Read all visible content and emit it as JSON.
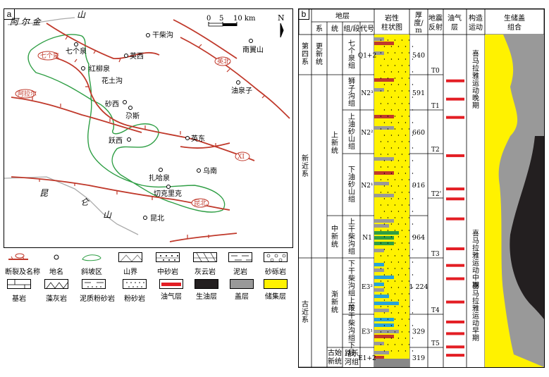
{
  "panel_a": {
    "label": "a",
    "scale": {
      "t0": "0",
      "t1": "5",
      "t2": "10 km"
    },
    "north": "N",
    "big_labels": [
      {
        "text": "阿  尔  金",
        "name": "region-aerjin"
      },
      {
        "text": "山",
        "name": "region-shan-top"
      },
      {
        "text": "昆",
        "name": "region-kun"
      },
      {
        "text": "仑",
        "name": "region-lun"
      },
      {
        "text": "山",
        "name": "region-shan-bottom"
      }
    ],
    "places": [
      {
        "name": "qianchaigou",
        "text": "干柴沟"
      },
      {
        "name": "nanyishan",
        "text": "南翼山"
      },
      {
        "name": "qigequan",
        "text": "七个泉"
      },
      {
        "name": "yingxi",
        "text": "英西"
      },
      {
        "name": "hongliuquan",
        "text": "红柳泉"
      },
      {
        "name": "huatugou",
        "text": "花土沟"
      },
      {
        "name": "youquanzi",
        "text": "油泉子"
      },
      {
        "name": "shaxi",
        "text": "砂西"
      },
      {
        "name": "ersi",
        "text": "尕斯"
      },
      {
        "name": "yingdong",
        "text": "英东"
      },
      {
        "name": "yuexi",
        "text": "跃西"
      },
      {
        "name": "zhahaquan",
        "text": "扎哈泉"
      },
      {
        "name": "wunan",
        "text": "乌南"
      },
      {
        "name": "qiekelike",
        "text": "切克里克"
      },
      {
        "name": "kunbei-place",
        "text": "昆北"
      }
    ],
    "faults": [
      {
        "name": "fault-qigequan",
        "text": "七个泉"
      },
      {
        "name": "fault-yingbei",
        "text": "英北"
      },
      {
        "name": "fault-aerer",
        "text": "阿拉尔"
      },
      {
        "name": "fault-xi",
        "text": "XI"
      },
      {
        "name": "fault-kunbei",
        "text": "昆北"
      }
    ]
  },
  "legend": [
    {
      "name": "fault",
      "label": "断裂及名称"
    },
    {
      "name": "place",
      "label": "地名"
    },
    {
      "name": "slope",
      "label": "斜坡区"
    },
    {
      "name": "mountain",
      "label": "山界"
    },
    {
      "name": "medium-sand",
      "label": "中砂岩"
    },
    {
      "name": "dolomite",
      "label": "灰云岩"
    },
    {
      "name": "mudstone",
      "label": "泥岩"
    },
    {
      "name": "conglomerate",
      "label": "砂砾岩"
    },
    {
      "name": "bedrock",
      "label": "基岩"
    },
    {
      "name": "algal",
      "label": "藻灰岩"
    },
    {
      "name": "muddy-silt",
      "label": "泥质粉砂岩"
    },
    {
      "name": "siltstone",
      "label": "粉砂岩"
    },
    {
      "name": "oil-layer",
      "label": "油气层",
      "color": "#e31e24"
    },
    {
      "name": "source",
      "label": "生油层",
      "color": "#231f20"
    },
    {
      "name": "cap",
      "label": "盖层",
      "color": "#999999"
    },
    {
      "name": "reservoir",
      "label": "储集层",
      "color": "#fff200"
    }
  ],
  "panel_b": {
    "label": "b",
    "headers": {
      "stratum": "地层",
      "xi": "系",
      "tong": "统",
      "zu": "组/段",
      "code": "代号",
      "litho": "岩性\n柱状图",
      "thickness": "厚度/m",
      "seismic": "地震反射",
      "oil": "油气层",
      "tectonic": "构造运动",
      "combo": "生储盖组合"
    },
    "systems": [
      {
        "name": "system-quaternary",
        "text": "第四系"
      },
      {
        "name": "system-neogene",
        "text": "新近系"
      },
      {
        "name": "system-paleogene",
        "text": "古近系"
      }
    ],
    "series": [
      {
        "name": "series-holocene",
        "text": "更新统"
      },
      {
        "name": "series-pliocene",
        "text": "上新统"
      },
      {
        "name": "series-miocene",
        "text": "中新统"
      },
      {
        "name": "series-oligocene",
        "text": "渐新统"
      },
      {
        "name": "series-paleocene",
        "text": "古始新统"
      }
    ],
    "formations": [
      {
        "name": "fm-qigequan",
        "text": "七个泉组",
        "code": "Q1+2",
        "thick": "540"
      },
      {
        "name": "fm-shizigou",
        "text": "狮子沟组",
        "code": "N2³",
        "thick": "591"
      },
      {
        "name": "fm-upper-youshashan",
        "text": "上油砂山组",
        "code": "N2²",
        "thick": "660"
      },
      {
        "name": "fm-lower-youshashan",
        "text": "下油砂山组",
        "code": "N2¹",
        "thick": "916"
      },
      {
        "name": "fm-shangganchaigou",
        "text": "上干柴沟组",
        "code": "N1",
        "thick": "964"
      },
      {
        "name": "fm-xgcg-upper",
        "text": "下干柴沟组上段",
        "code": "E3²",
        "thick": "1 224"
      },
      {
        "name": "fm-xgcg-lower",
        "text": "下干柴沟组下段",
        "code": "E3¹",
        "thick": "329"
      },
      {
        "name": "fm-lulehe",
        "text": "路乐河组",
        "code": "E1+2",
        "thick": "319"
      }
    ],
    "seismic": [
      "T0",
      "T1",
      "T2",
      "T2'",
      "T3",
      "T4",
      "T5"
    ],
    "tectonics": [
      {
        "name": "tect-late",
        "text": "喜马拉雅运动晚期"
      },
      {
        "name": "tect-mid",
        "text": "喜马拉雅运动中期"
      },
      {
        "name": "tect-early",
        "text": "喜马拉雅运动早期"
      }
    ],
    "oil_layers": [
      0.135,
      0.19,
      0.245,
      0.36,
      0.46,
      0.49,
      0.55,
      0.64,
      0.69,
      0.73,
      0.8,
      0.86,
      0.895,
      0.935,
      0.96
    ]
  },
  "colors": {
    "fault": "#c0392b",
    "slope": "#2e9e44",
    "yellow": "#fff200",
    "gray": "#999999",
    "black": "#231f20",
    "red": "#e31e24",
    "blue": "#29a3d8",
    "green": "#2e9e44"
  }
}
